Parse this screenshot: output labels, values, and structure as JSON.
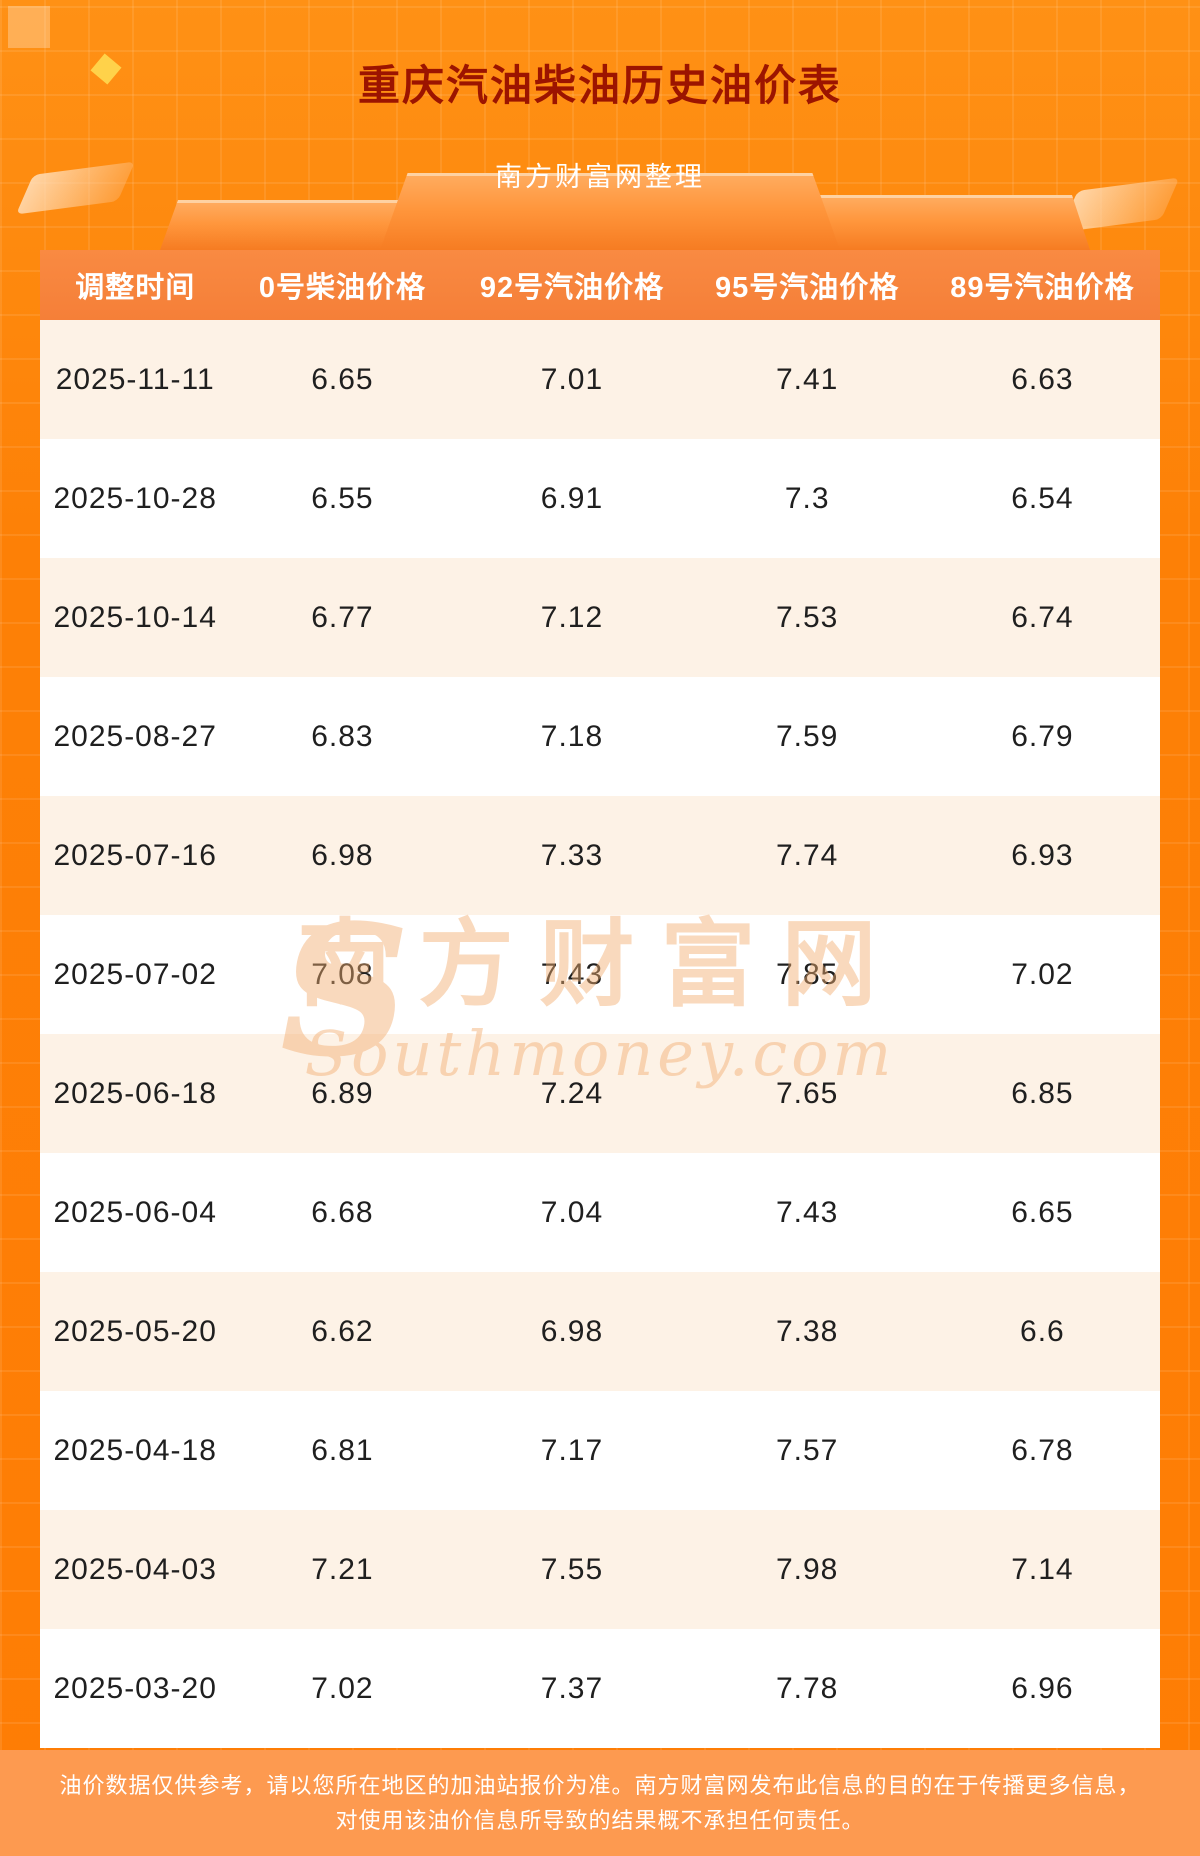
{
  "page": {
    "title": "重庆汽油柴油历史油价表",
    "subtitle": "南方财富网整理",
    "footer": "油价数据仅供参考，请以您所在地区的加油站报价为准。南方财富网发布此信息的目的在于传播更多信息，对使用该油价信息所导致的结果概不承担任何责任。"
  },
  "watermark": {
    "initial": "S",
    "cn": "南方财富网",
    "en": "Southmoney.com"
  },
  "table": {
    "columns": [
      "调整时间",
      "0号柴油价格",
      "92号汽油价格",
      "95号汽油价格",
      "89号汽油价格"
    ],
    "rows": [
      [
        "2025-11-11",
        "6.65",
        "7.01",
        "7.41",
        "6.63"
      ],
      [
        "2025-10-28",
        "6.55",
        "6.91",
        "7.3",
        "6.54"
      ],
      [
        "2025-10-14",
        "6.77",
        "7.12",
        "7.53",
        "6.74"
      ],
      [
        "2025-08-27",
        "6.83",
        "7.18",
        "7.59",
        "6.79"
      ],
      [
        "2025-07-16",
        "6.98",
        "7.33",
        "7.74",
        "6.93"
      ],
      [
        "2025-07-02",
        "7.08",
        "7.43",
        "7.85",
        "7.02"
      ],
      [
        "2025-06-18",
        "6.89",
        "7.24",
        "7.65",
        "6.85"
      ],
      [
        "2025-06-04",
        "6.68",
        "7.04",
        "7.43",
        "6.65"
      ],
      [
        "2025-05-20",
        "6.62",
        "6.98",
        "7.38",
        "6.6"
      ],
      [
        "2025-04-18",
        "6.81",
        "7.17",
        "7.57",
        "6.78"
      ],
      [
        "2025-04-03",
        "7.21",
        "7.55",
        "7.98",
        "7.14"
      ],
      [
        "2025-03-20",
        "7.02",
        "7.37",
        "7.78",
        "6.96"
      ]
    ]
  },
  "colors": {
    "page_bg": "#fd7f06",
    "title": "#9c1400",
    "header_bg": "#f57f38",
    "row_stripe": "#fdf2e6",
    "row_white": "#ffffff",
    "footer_bg": "#fd9a50",
    "text": "#1f1f1f",
    "watermark": "#f2ad6f"
  }
}
